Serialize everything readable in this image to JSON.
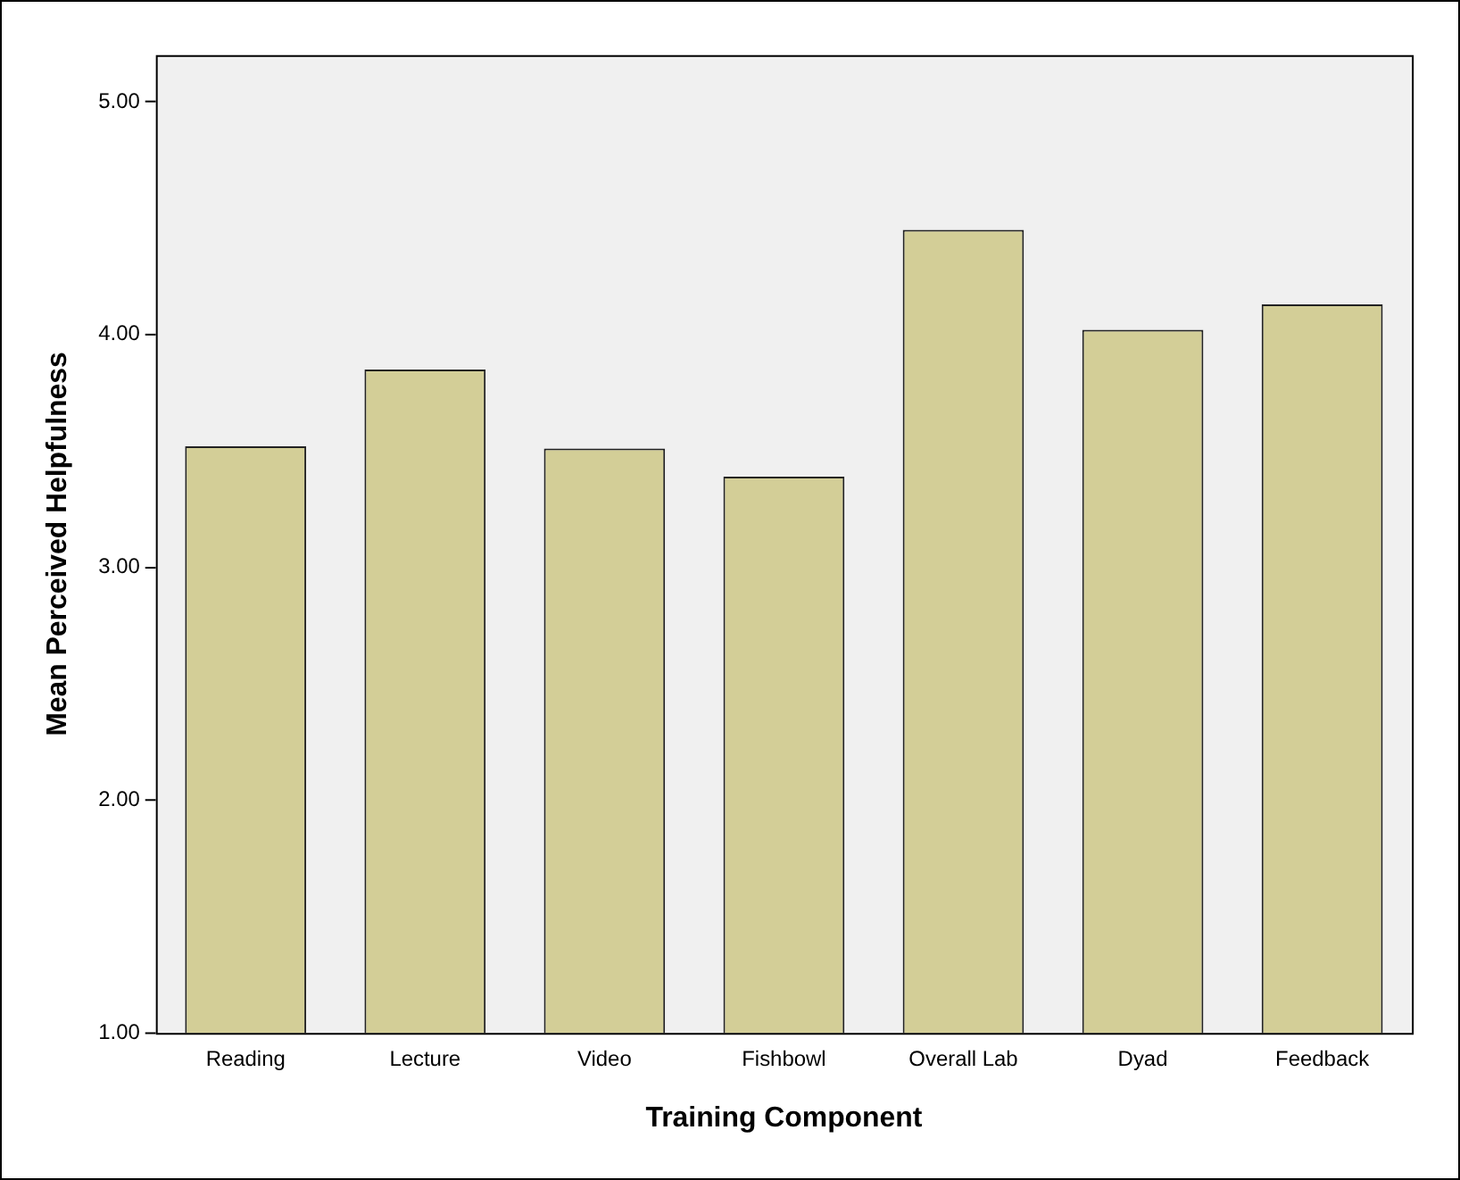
{
  "chart_data": {
    "type": "bar",
    "xlabel": "Training Component",
    "ylabel": "Mean Perceived Helpfulness",
    "categories": [
      "Reading",
      "Lecture",
      "Video",
      "Fishbowl",
      "Overall Lab",
      "Dyad",
      "Feedback"
    ],
    "values": [
      3.52,
      3.85,
      3.51,
      3.39,
      4.45,
      4.02,
      4.13
    ],
    "color": "#d3ce97",
    "ylim": [
      1,
      5.2
    ],
    "yticks": [
      {
        "value": 1,
        "label": "1.00"
      },
      {
        "value": 2,
        "label": "2.00"
      },
      {
        "value": 3,
        "label": "3.00"
      },
      {
        "value": 4,
        "label": "4.00"
      },
      {
        "value": 5,
        "label": "5.00"
      }
    ],
    "grid": false,
    "legend": false
  }
}
